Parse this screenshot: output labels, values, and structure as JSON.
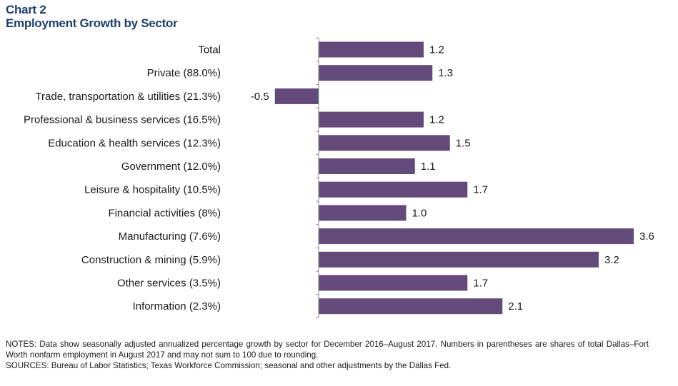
{
  "header": {
    "chart_number": "Chart 2",
    "title": "Employment Growth by Sector"
  },
  "colors": {
    "bar": "#644a7a",
    "title": "#1f3f6e",
    "axis": "#8c8c8c"
  },
  "chart_data": {
    "type": "bar",
    "orientation": "horizontal",
    "title": "Employment Growth by Sector",
    "xlabel": "",
    "ylabel": "",
    "xlim": [
      -0.5,
      3.6
    ],
    "grid": false,
    "categories": [
      "Total",
      "Private (88.0%)",
      "Trade, transportation & utilities (21.3%)",
      "Professional & business services (16.5%)",
      "Education & health services (12.3%)",
      "Government (12.0%)",
      "Leisure & hospitality (10.5%)",
      "Financial activities (8%)",
      "Manufacturing (7.6%)",
      "Construction & mining (5.9%)",
      "Other services (3.5%)",
      "Information (2.3%)"
    ],
    "values": [
      1.2,
      1.3,
      -0.5,
      1.2,
      1.5,
      1.1,
      1.7,
      1.0,
      3.6,
      3.2,
      1.7,
      2.1
    ],
    "value_labels": [
      "1.2",
      "1.3",
      "-0.5",
      "1.2",
      "1.5",
      "1.1",
      "1.7",
      "1.0",
      "3.6",
      "3.2",
      "1.7",
      "2.1"
    ]
  },
  "footer": {
    "notes": "NOTES: Data show seasonally adjusted annualized percentage growth by sector for December 2016–August 2017. Numbers in parentheses are shares of total Dallas–Fort Worth nonfarm employment in August 2017 and may not sum to 100 due to rounding.",
    "sources": "SOURCES: Bureau of Labor Statistics; Texas Workforce Commission; seasonal and other adjustments by the Dallas Fed."
  }
}
